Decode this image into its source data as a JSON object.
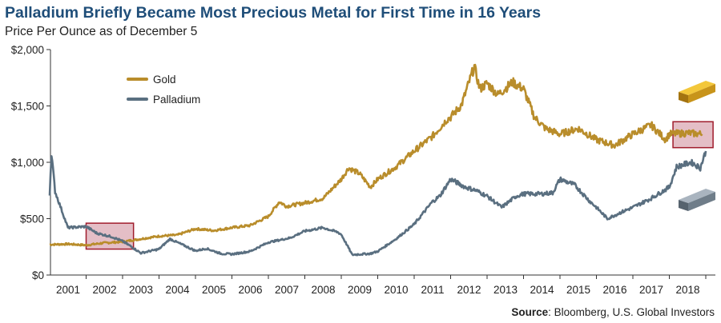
{
  "title": "Palladium Briefly Became Most Precious Metal for First Time in 16 Years",
  "subtitle": "Price Per Ounce as of December 5",
  "source": {
    "label": "Source",
    "text": ": Bloomberg, U.S. Global Investors"
  },
  "chart_data": {
    "type": "line",
    "title": "Palladium Briefly Became Most Precious Metal for First Time in 16 Years",
    "subtitle": "Price Per Ounce as of December 5",
    "y_ticks": [
      "$0",
      "$500",
      "$1,000",
      "$1,500",
      "$2,000"
    ],
    "y_tick_values": [
      0,
      500,
      1000,
      1500,
      2000
    ],
    "x_ticks": [
      "2001",
      "2002",
      "2003",
      "2004",
      "2005",
      "2006",
      "2007",
      "2008",
      "2009",
      "2010",
      "2011",
      "2012",
      "2013",
      "2014",
      "2015",
      "2016",
      "2017",
      "2018"
    ],
    "x_tick_values": [
      2001,
      2002,
      2003,
      2004,
      2005,
      2006,
      2007,
      2008,
      2009,
      2010,
      2011,
      2012,
      2013,
      2014,
      2015,
      2016,
      2017,
      2018
    ],
    "xlim": [
      2000.0,
      2018.0
    ],
    "ylim": [
      0,
      2000
    ],
    "legend_position": "top-left",
    "colors": {
      "gold": "#b98d2b",
      "palladium": "#5a6f80",
      "highlight_fill": "#d9a3ae",
      "highlight_stroke": "#a01c2c"
    },
    "series": [
      {
        "name": "Gold",
        "x": [
          2000.0,
          2000.5,
          2001.0,
          2001.5,
          2002.0,
          2002.5,
          2003.0,
          2003.5,
          2004.0,
          2004.5,
          2005.0,
          2005.5,
          2006.0,
          2006.3,
          2006.5,
          2007.0,
          2007.5,
          2008.0,
          2008.2,
          2008.5,
          2008.8,
          2009.0,
          2009.5,
          2010.0,
          2010.5,
          2010.9,
          2011.0,
          2011.3,
          2011.65,
          2011.8,
          2012.0,
          2012.3,
          2012.7,
          2013.0,
          2013.3,
          2013.6,
          2014.0,
          2014.5,
          2015.0,
          2015.5,
          2016.0,
          2016.5,
          2016.9,
          2017.0,
          2017.5,
          2017.9
        ],
        "y": [
          270,
          275,
          265,
          285,
          295,
          320,
          345,
          355,
          410,
          395,
          420,
          440,
          520,
          650,
          610,
          640,
          680,
          850,
          950,
          900,
          780,
          850,
          960,
          1100,
          1230,
          1380,
          1400,
          1510,
          1850,
          1650,
          1700,
          1600,
          1710,
          1650,
          1400,
          1300,
          1250,
          1300,
          1200,
          1150,
          1250,
          1330,
          1200,
          1250,
          1260,
          1250
        ]
      },
      {
        "name": "Palladium",
        "x": [
          2000.0,
          2000.05,
          2000.15,
          2000.5,
          2001.0,
          2001.3,
          2001.7,
          2002.0,
          2002.25,
          2002.5,
          2003.0,
          2003.3,
          2003.7,
          2004.0,
          2004.3,
          2004.7,
          2005.0,
          2005.5,
          2006.0,
          2006.3,
          2006.6,
          2007.0,
          2007.5,
          2007.9,
          2008.0,
          2008.3,
          2008.8,
          2009.0,
          2009.5,
          2010.0,
          2010.5,
          2010.7,
          2011.0,
          2011.4,
          2011.7,
          2012.0,
          2012.4,
          2012.8,
          2013.0,
          2013.5,
          2013.8,
          2014.0,
          2014.4,
          2014.8,
          2015.0,
          2015.3,
          2015.7,
          2016.0,
          2016.5,
          2017.0,
          2017.2,
          2017.6,
          2017.85,
          2018.0
        ],
        "y": [
          720,
          1080,
          740,
          420,
          430,
          370,
          340,
          300,
          250,
          195,
          230,
          320,
          260,
          215,
          235,
          190,
          185,
          210,
          290,
          310,
          330,
          390,
          420,
          380,
          360,
          180,
          190,
          210,
          320,
          450,
          650,
          700,
          850,
          780,
          750,
          700,
          600,
          700,
          720,
          720,
          730,
          850,
          800,
          660,
          600,
          500,
          560,
          600,
          680,
          780,
          960,
          1000,
          950,
          1100
        ]
      }
    ],
    "annotations": [
      {
        "type": "highlight-box",
        "x": [
          2001.0,
          2002.3
        ],
        "y": [
          230,
          460
        ]
      },
      {
        "type": "highlight-box",
        "x": [
          2017.1,
          2018.2
        ],
        "y": [
          1130,
          1360
        ]
      },
      {
        "type": "icon",
        "name": "gold-bar-icon"
      },
      {
        "type": "icon",
        "name": "palladium-bar-icon"
      }
    ]
  }
}
